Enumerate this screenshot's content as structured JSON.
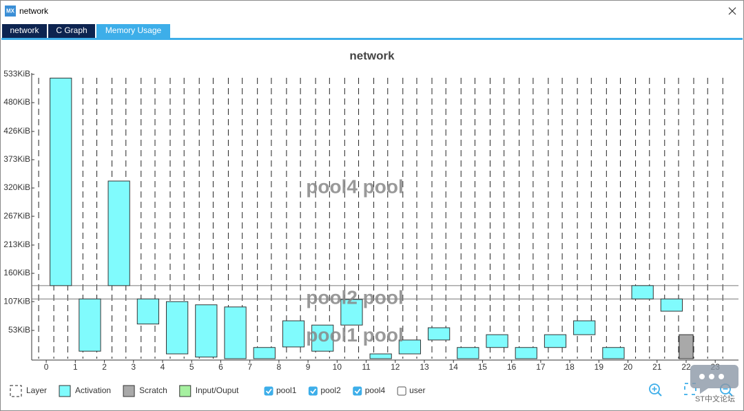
{
  "window": {
    "title": "network",
    "icon": "MX",
    "tabs": [
      "network",
      "C Graph",
      "Memory Usage"
    ],
    "active_tab": 2
  },
  "chart_data": {
    "type": "range-bar",
    "title": "network",
    "xlim": [
      -0.5,
      23.8
    ],
    "xticks": [
      0,
      1,
      2,
      3,
      4,
      5,
      6,
      7,
      8,
      9,
      10,
      11,
      12,
      13,
      14,
      15,
      16,
      17,
      18,
      19,
      20,
      21,
      22,
      23
    ],
    "ylim": [
      0,
      533
    ],
    "yticks": [
      {
        "value": 53,
        "label": "53KiB"
      },
      {
        "value": 107,
        "label": "107KiB"
      },
      {
        "value": 160,
        "label": "160KiB"
      },
      {
        "value": 213,
        "label": "213KiB"
      },
      {
        "value": 267,
        "label": "267KiB"
      },
      {
        "value": 320,
        "label": "320KiB"
      },
      {
        "value": 373,
        "label": "373KiB"
      },
      {
        "value": 426,
        "label": "426KiB"
      },
      {
        "value": 480,
        "label": "480KiB"
      },
      {
        "value": 533,
        "label": "533KiB"
      }
    ],
    "series": [
      {
        "name": "Activation",
        "color": "#80fbfd",
        "x": [
          0.5,
          1.5,
          2.5,
          3.5,
          4.5,
          5.5,
          6.5,
          7.5,
          8.5,
          9.5,
          10.5,
          11.5,
          12.5,
          13.5,
          14.5,
          15.5,
          16.5,
          17.5,
          18.5,
          19.5,
          20.5,
          21.5
        ],
        "start": [
          137,
          14,
          137,
          65,
          9,
          3,
          0,
          0,
          22,
          14,
          63,
          0,
          9,
          35,
          0,
          21,
          0,
          21,
          45,
          0,
          112,
          89
        ],
        "end": [
          526,
          112,
          333,
          112,
          107,
          101,
          97,
          21,
          71,
          63,
          111,
          9,
          35,
          58,
          21,
          45,
          21,
          45,
          71,
          21,
          137,
          112
        ]
      },
      {
        "name": "Scratch",
        "color": "#a9a9a9",
        "x": [
          22
        ],
        "start": [
          0
        ],
        "end": [
          45
        ]
      }
    ],
    "pools": [
      {
        "name": "pool4 pool",
        "bound": 137,
        "label_at": 320
      },
      {
        "name": "pool2 pool",
        "bound": 112,
        "label_at": 112
      },
      {
        "name": "pool1 pool",
        "label_at": 42
      }
    ]
  },
  "legend": {
    "items": [
      {
        "name": "Layer",
        "style": "dashed"
      },
      {
        "name": "Activation",
        "color": "#80fbfd"
      },
      {
        "name": "Scratch",
        "color": "#a9a9a9"
      },
      {
        "name": "Input/Ouput",
        "color": "#a6f0a0"
      }
    ],
    "checks": [
      {
        "name": "pool1",
        "checked": true
      },
      {
        "name": "pool2",
        "checked": true
      },
      {
        "name": "pool4",
        "checked": true
      },
      {
        "name": "user",
        "checked": false
      }
    ]
  },
  "watermark": "ST中文论坛"
}
